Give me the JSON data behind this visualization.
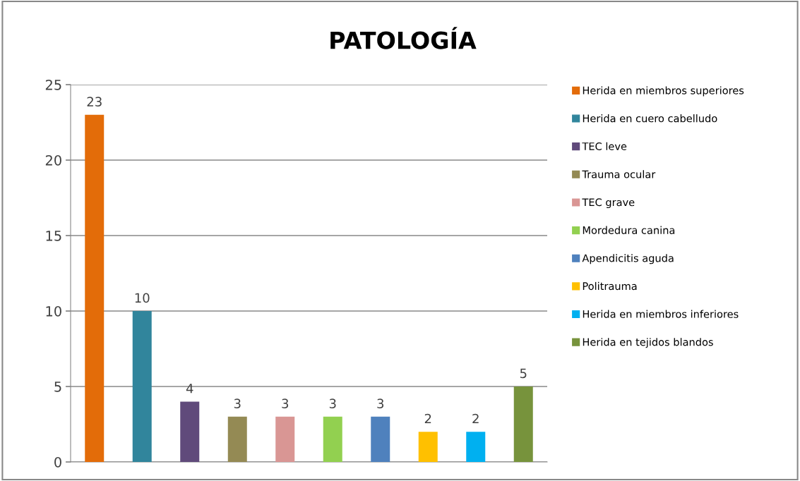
{
  "chart_data": {
    "type": "bar",
    "title": "PATOLOGÍA",
    "categories": [
      null,
      null,
      null,
      null,
      null,
      null,
      null,
      null,
      null,
      null
    ],
    "series": [
      {
        "name": "Herida en miembros superiores",
        "color": "#e36c09",
        "values": [
          23,
          null,
          null,
          null,
          null,
          null,
          null,
          null,
          null,
          null
        ]
      },
      {
        "name": "Herida en cuero cabelludo",
        "color": "#31859c",
        "values": [
          null,
          10,
          null,
          null,
          null,
          null,
          null,
          null,
          null,
          null
        ]
      },
      {
        "name": "TEC leve",
        "color": "#604a7b",
        "values": [
          null,
          null,
          4,
          null,
          null,
          null,
          null,
          null,
          null,
          null
        ]
      },
      {
        "name": "Trauma ocular",
        "color": "#948a54",
        "values": [
          null,
          null,
          null,
          3,
          null,
          null,
          null,
          null,
          null,
          null
        ]
      },
      {
        "name": "TEC grave",
        "color": "#d99694",
        "values": [
          null,
          null,
          null,
          null,
          3,
          null,
          null,
          null,
          null,
          null
        ]
      },
      {
        "name": "Mordedura canina",
        "color": "#92d050",
        "values": [
          null,
          null,
          null,
          null,
          null,
          3,
          null,
          null,
          null,
          null
        ]
      },
      {
        "name": "Apendicitis aguda",
        "color": "#4f81bd",
        "values": [
          null,
          null,
          null,
          null,
          null,
          null,
          3,
          null,
          null,
          null
        ]
      },
      {
        "name": "Politrauma",
        "color": "#ffc000",
        "values": [
          null,
          null,
          null,
          null,
          null,
          null,
          null,
          2,
          null,
          null
        ]
      },
      {
        "name": "Herida en miembros inferiores",
        "color": "#00b0f0",
        "values": [
          null,
          null,
          null,
          null,
          null,
          null,
          null,
          null,
          2,
          null
        ]
      },
      {
        "name": "Herida en tejidos blandos",
        "color": "#77933c",
        "values": [
          null,
          null,
          null,
          null,
          null,
          null,
          null,
          null,
          null,
          5
        ]
      }
    ],
    "ylim": [
      0,
      25
    ],
    "yticks": [
      0,
      5,
      10,
      15,
      20,
      25
    ],
    "grid": "y",
    "legend": "right",
    "data_labels": true
  }
}
